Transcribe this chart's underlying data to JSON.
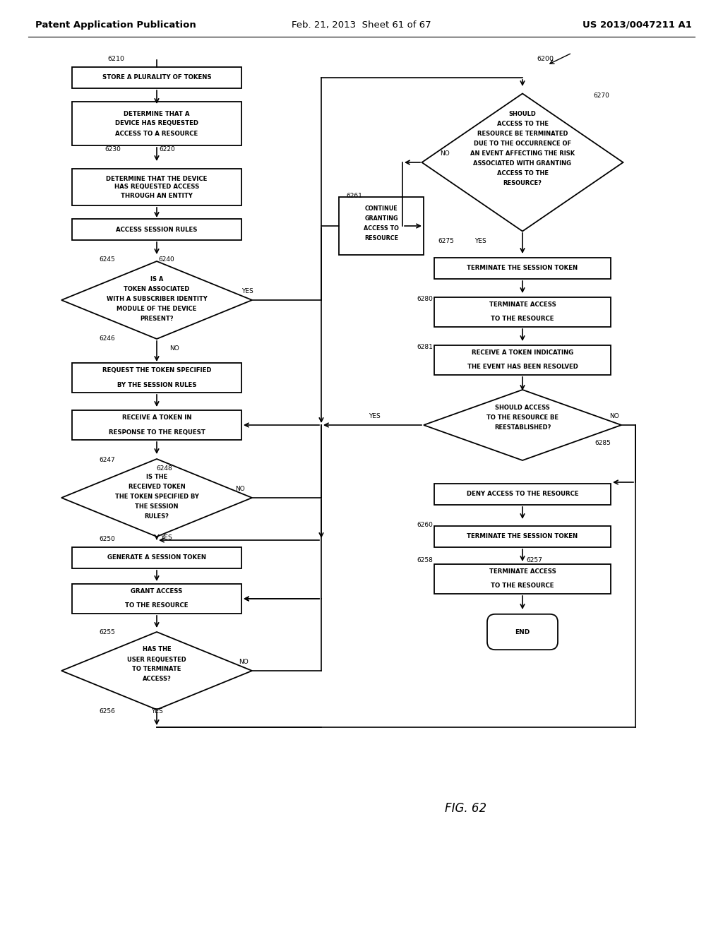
{
  "header_left": "Patent Application Publication",
  "header_mid": "Feb. 21, 2013  Sheet 61 of 67",
  "header_right": "US 2013/0047211 A1",
  "figure_label": "FIG. 62",
  "bg_color": "#ffffff",
  "line_color": "#000000",
  "text_color": "#000000",
  "font_size": 6.5,
  "header_font_size": 9.5
}
